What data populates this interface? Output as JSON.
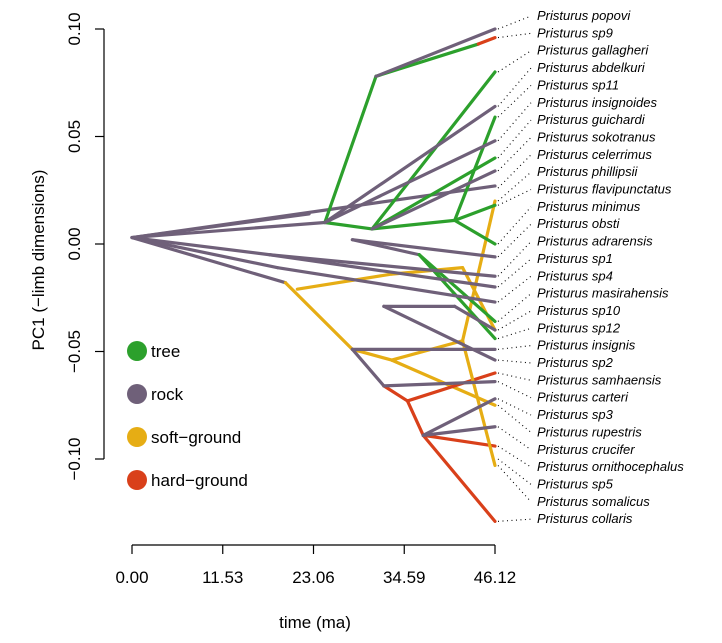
{
  "chart_data": {
    "type": "line",
    "xlabel": "time (ma)",
    "ylabel": "PC1 (−limb dimensions)",
    "xlim": [
      0,
      46.12
    ],
    "ylim": [
      -0.13,
      0.1
    ],
    "x_ticks": [
      0,
      11.53,
      23.06,
      34.59,
      46.12
    ],
    "x_tick_labels": [
      "0.00",
      "11.53",
      "23.06",
      "34.59",
      "46.12"
    ],
    "y_ticks": [
      -0.1,
      -0.05,
      0.0,
      0.05,
      0.1
    ],
    "y_tick_labels": [
      "−0.10",
      "−0.05",
      "0.00",
      "0.05",
      "0.10"
    ],
    "legend_position": "bottom-left",
    "states": [
      {
        "name": "tree",
        "color": "#2ca02c"
      },
      {
        "name": "rock",
        "color": "#6f6079"
      },
      {
        "name": "soft−ground",
        "color": "#e6ad14"
      },
      {
        "name": "hard−ground",
        "color": "#d9401a"
      }
    ],
    "tips": [
      {
        "name": "Pristurus popovi",
        "value": 0.1
      },
      {
        "name": "Pristurus sp9",
        "value": 0.096
      },
      {
        "name": "Pristurus gallagheri",
        "value": 0.08
      },
      {
        "name": "Pristurus abdelkuri",
        "value": 0.064
      },
      {
        "name": "Pristurus sp11",
        "value": 0.059
      },
      {
        "name": "Pristurus insignoides",
        "value": 0.048
      },
      {
        "name": "Pristurus guichardi",
        "value": 0.04
      },
      {
        "name": "Pristurus sokotranus",
        "value": 0.034
      },
      {
        "name": "Pristurus celerrimus",
        "value": 0.026
      },
      {
        "name": "Pristurus phillipsii",
        "value": 0.02
      },
      {
        "name": "Pristurus flavipunctatus",
        "value": 0.018
      },
      {
        "name": "Pristurus minimus",
        "value": 0.0
      },
      {
        "name": "Pristurus obsti",
        "value": -0.006
      },
      {
        "name": "Pristurus adrarensis",
        "value": -0.015
      },
      {
        "name": "Pristurus sp1",
        "value": -0.02
      },
      {
        "name": "Pristurus sp4",
        "value": -0.027
      },
      {
        "name": "Pristurus masirahensis",
        "value": -0.036
      },
      {
        "name": "Pristurus sp10",
        "value": -0.04
      },
      {
        "name": "Pristurus sp12",
        "value": -0.044
      },
      {
        "name": "Pristurus insignis",
        "value": -0.049
      },
      {
        "name": "Pristurus sp2",
        "value": -0.054
      },
      {
        "name": "Pristurus samhaensis",
        "value": -0.06
      },
      {
        "name": "Pristurus carteri",
        "value": -0.064
      },
      {
        "name": "Pristurus sp3",
        "value": -0.072
      },
      {
        "name": "Pristurus rupestris",
        "value": -0.075
      },
      {
        "name": "Pristurus crucifer",
        "value": -0.085
      },
      {
        "name": "Pristurus ornithocephalus",
        "value": -0.094
      },
      {
        "name": "Pristurus sp5",
        "value": -0.1
      },
      {
        "name": "Pristurus somalicus",
        "value": -0.103
      },
      {
        "name": "Pristurus collaris",
        "value": -0.129
      }
    ],
    "branches": [
      {
        "from": [
          0,
          0.003
        ],
        "to": [
          17.5,
          -0.005
        ],
        "state": "rock"
      },
      {
        "from": [
          0,
          0.003
        ],
        "to": [
          22.5,
          0.014
        ],
        "state": "rock"
      },
      {
        "from": [
          0,
          0.003
        ],
        "to": [
          46.12,
          0.027
        ],
        "state": "rock"
      },
      {
        "from": [
          0,
          0.003
        ],
        "to": [
          18.5,
          -0.011
        ],
        "state": "rock"
      },
      {
        "from": [
          0,
          0.003
        ],
        "to": [
          19.5,
          -0.018
        ],
        "state": "rock"
      },
      {
        "from": [
          0,
          0.003
        ],
        "to": [
          24.5,
          0.01
        ],
        "state": "rock"
      },
      {
        "from": [
          19.5,
          -0.018
        ],
        "to": [
          28.0,
          -0.049
        ],
        "state": "soft−ground"
      },
      {
        "from": [
          21.0,
          -0.021
        ],
        "to": [
          33.0,
          -0.014
        ],
        "state": "soft−ground"
      },
      {
        "from": [
          33.0,
          -0.014
        ],
        "to": [
          42.0,
          -0.011
        ],
        "state": "soft−ground"
      },
      {
        "from": [
          42.0,
          -0.011
        ],
        "to": [
          46.12,
          -0.04
        ],
        "state": "soft−ground"
      },
      {
        "from": [
          28.0,
          -0.049
        ],
        "to": [
          33.0,
          -0.054
        ],
        "state": "soft−ground"
      },
      {
        "from": [
          33.0,
          -0.054
        ],
        "to": [
          46.12,
          -0.075
        ],
        "state": "soft−ground"
      },
      {
        "from": [
          33.0,
          -0.054
        ],
        "to": [
          42.0,
          -0.045
        ],
        "state": "soft−ground"
      },
      {
        "from": [
          28.0,
          -0.049
        ],
        "to": [
          32.0,
          -0.066
        ],
        "state": "rock"
      },
      {
        "from": [
          32.0,
          -0.066
        ],
        "to": [
          35.0,
          -0.073
        ],
        "state": "hard−ground"
      },
      {
        "from": [
          35.0,
          -0.073
        ],
        "to": [
          46.12,
          -0.06
        ],
        "state": "hard−ground"
      },
      {
        "from": [
          35.0,
          -0.073
        ],
        "to": [
          37.0,
          -0.089
        ],
        "state": "hard−ground"
      },
      {
        "from": [
          37.0,
          -0.089
        ],
        "to": [
          46.12,
          -0.094
        ],
        "state": "hard−ground"
      },
      {
        "from": [
          37.0,
          -0.089
        ],
        "to": [
          46.12,
          -0.129
        ],
        "state": "hard−ground"
      },
      {
        "from": [
          42.0,
          -0.045
        ],
        "to": [
          46.12,
          0.02
        ],
        "state": "soft−ground"
      },
      {
        "from": [
          42.0,
          -0.045
        ],
        "to": [
          46.12,
          -0.103
        ],
        "state": "soft−ground"
      },
      {
        "from": [
          24.5,
          0.01
        ],
        "to": [
          30.5,
          0.007
        ],
        "state": "tree"
      },
      {
        "from": [
          24.5,
          0.01
        ],
        "to": [
          31.0,
          0.078
        ],
        "state": "tree"
      },
      {
        "from": [
          31.0,
          0.078
        ],
        "to": [
          44.0,
          0.093
        ],
        "state": "tree"
      },
      {
        "from": [
          44.0,
          0.093
        ],
        "to": [
          46.12,
          0.096
        ],
        "state": "hard−ground"
      },
      {
        "from": [
          31.0,
          0.078
        ],
        "to": [
          46.12,
          0.1
        ],
        "state": "rock"
      },
      {
        "from": [
          30.5,
          0.007
        ],
        "to": [
          46.12,
          0.08
        ],
        "state": "tree"
      },
      {
        "from": [
          30.5,
          0.007
        ],
        "to": [
          41.0,
          0.011
        ],
        "state": "tree"
      },
      {
        "from": [
          41.0,
          0.011
        ],
        "to": [
          46.12,
          0.059
        ],
        "state": "tree"
      },
      {
        "from": [
          41.0,
          0.011
        ],
        "to": [
          46.12,
          0.018
        ],
        "state": "tree"
      },
      {
        "from": [
          41.0,
          0.011
        ],
        "to": [
          46.12,
          0.0
        ],
        "state": "tree"
      },
      {
        "from": [
          24.5,
          0.01
        ],
        "to": [
          46.12,
          0.064
        ],
        "state": "rock"
      },
      {
        "from": [
          24.5,
          0.01
        ],
        "to": [
          46.12,
          0.048
        ],
        "state": "rock"
      },
      {
        "from": [
          30.5,
          0.007
        ],
        "to": [
          46.12,
          0.04
        ],
        "state": "tree"
      },
      {
        "from": [
          30.5,
          0.007
        ],
        "to": [
          46.12,
          0.034
        ],
        "state": "rock"
      },
      {
        "from": [
          28.0,
          0.002
        ],
        "to": [
          46.12,
          -0.006
        ],
        "state": "rock"
      },
      {
        "from": [
          28.0,
          0.002
        ],
        "to": [
          36.5,
          -0.005
        ],
        "state": "rock"
      },
      {
        "from": [
          36.5,
          -0.005
        ],
        "to": [
          46.12,
          -0.036
        ],
        "state": "tree"
      },
      {
        "from": [
          36.5,
          -0.005
        ],
        "to": [
          46.12,
          -0.044
        ],
        "state": "tree"
      },
      {
        "from": [
          17.5,
          -0.005
        ],
        "to": [
          46.12,
          -0.015
        ],
        "state": "rock"
      },
      {
        "from": [
          17.5,
          -0.005
        ],
        "to": [
          46.12,
          -0.02
        ],
        "state": "rock"
      },
      {
        "from": [
          18.5,
          -0.011
        ],
        "to": [
          46.12,
          -0.027
        ],
        "state": "rock"
      },
      {
        "from": [
          32.0,
          -0.029
        ],
        "to": [
          41.0,
          -0.029
        ],
        "state": "rock"
      },
      {
        "from": [
          41.0,
          -0.029
        ],
        "to": [
          46.12,
          -0.04
        ],
        "state": "rock"
      },
      {
        "from": [
          28.0,
          -0.049
        ],
        "to": [
          46.12,
          -0.049
        ],
        "state": "rock"
      },
      {
        "from": [
          32.0,
          -0.029
        ],
        "to": [
          46.12,
          -0.054
        ],
        "state": "rock"
      },
      {
        "from": [
          32.0,
          -0.066
        ],
        "to": [
          46.12,
          -0.064
        ],
        "state": "rock"
      },
      {
        "from": [
          37.0,
          -0.089
        ],
        "to": [
          46.12,
          -0.072
        ],
        "state": "rock"
      },
      {
        "from": [
          37.0,
          -0.089
        ],
        "to": [
          46.12,
          -0.085
        ],
        "state": "rock"
      }
    ]
  }
}
